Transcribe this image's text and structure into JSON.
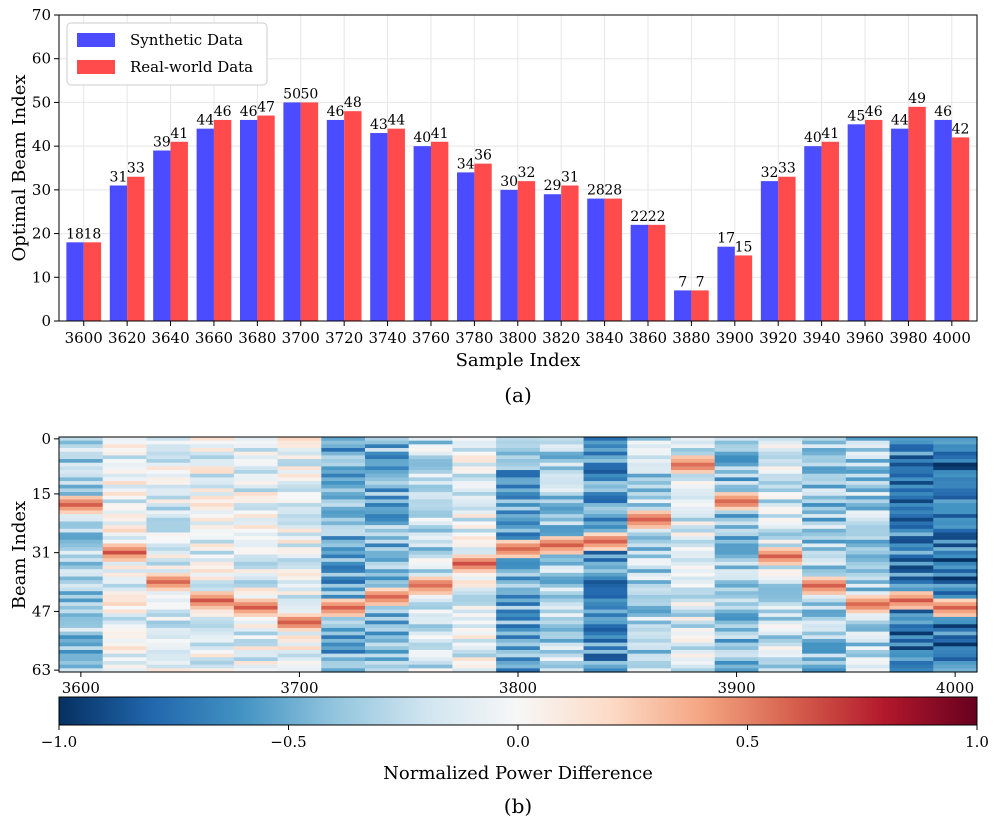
{
  "chart_data": [
    {
      "type": "bar",
      "caption": "(a)",
      "categories": [
        "3600",
        "3620",
        "3640",
        "3660",
        "3680",
        "3700",
        "3720",
        "3740",
        "3760",
        "3780",
        "3800",
        "3820",
        "3840",
        "3860",
        "3880",
        "3900",
        "3920",
        "3940",
        "3960",
        "3980",
        "4000"
      ],
      "series": [
        {
          "name": "Synthetic Data",
          "color": "#4b4bff",
          "values": [
            18,
            31,
            39,
            44,
            46,
            50,
            46,
            43,
            40,
            34,
            30,
            29,
            28,
            22,
            7,
            17,
            32,
            40,
            45,
            44,
            46
          ]
        },
        {
          "name": "Real-world Data",
          "color": "#ff4b4b",
          "values": [
            18,
            33,
            41,
            46,
            47,
            50,
            48,
            44,
            41,
            36,
            32,
            31,
            28,
            22,
            7,
            15,
            33,
            41,
            46,
            49,
            42
          ]
        }
      ],
      "xlabel": "Sample Index",
      "ylabel": "Optimal Beam Index",
      "ylim": [
        0,
        70
      ],
      "yticks": [
        0,
        10,
        20,
        30,
        40,
        50,
        60,
        70
      ],
      "grid": true,
      "legend": "top-left"
    },
    {
      "type": "heatmap",
      "caption": "(b)",
      "xlabel": "",
      "ylabel": "Beam Index",
      "xticks": [
        "3600",
        "3700",
        "3800",
        "3900",
        "4000"
      ],
      "yticks": [
        "0",
        "15",
        "31",
        "47",
        "63"
      ],
      "columns": 21,
      "rows": 64,
      "colormap": "RdBu_r",
      "colorbar_label": "Normalized Power Difference",
      "colorbar_ticks": [
        "−1.0",
        "−0.5",
        "0.0",
        "0.5",
        "1.0"
      ],
      "clim": [
        -1.0,
        1.0
      ],
      "optimal_beams": [
        18,
        31,
        39,
        44,
        46,
        50,
        46,
        43,
        40,
        34,
        30,
        29,
        28,
        22,
        7,
        17,
        32,
        40,
        45,
        44,
        46
      ],
      "column_base": [
        -0.35,
        -0.05,
        -0.12,
        -0.08,
        -0.1,
        -0.05,
        -0.5,
        -0.45,
        -0.25,
        -0.1,
        -0.5,
        -0.3,
        -0.6,
        -0.3,
        -0.15,
        -0.4,
        -0.2,
        -0.35,
        -0.3,
        -0.7,
        -0.75
      ]
    }
  ]
}
